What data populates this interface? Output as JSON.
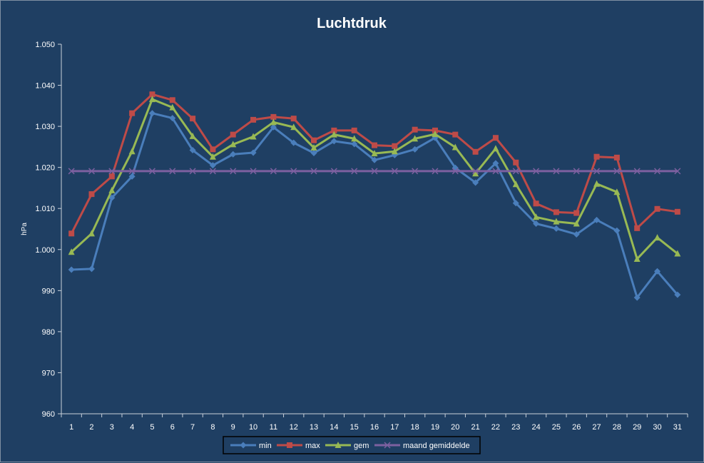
{
  "chart_data": {
    "type": "line",
    "title": "Luchtdruk",
    "ylabel": "hPa",
    "xlabel": "",
    "ylim": [
      960,
      1050
    ],
    "yticks": [
      960,
      970,
      980,
      990,
      1000,
      1010,
      1020,
      1030,
      1040,
      1050
    ],
    "ytick_labels": [
      "960",
      "970",
      "980",
      "990",
      "1.000",
      "1.010",
      "1.020",
      "1.030",
      "1.040",
      "1.050"
    ],
    "categories": [
      "1",
      "2",
      "3",
      "4",
      "5",
      "6",
      "7",
      "8",
      "9",
      "10",
      "11",
      "12",
      "13",
      "14",
      "15",
      "16",
      "17",
      "18",
      "19",
      "20",
      "21",
      "22",
      "23",
      "24",
      "25",
      "26",
      "27",
      "28",
      "29",
      "30",
      "31"
    ],
    "grid": false,
    "legend_position": "bottom",
    "series": [
      {
        "name": "min",
        "color": "#4a7ebb",
        "marker": "diamond",
        "values": [
          995.1,
          995.3,
          1012.6,
          1017.8,
          1033.2,
          1032.0,
          1024.2,
          1020.5,
          1023.2,
          1023.6,
          1029.8,
          1026.0,
          1023.5,
          1026.4,
          1025.7,
          1021.8,
          1023.0,
          1024.4,
          1027.2,
          1019.9,
          1016.3,
          1021.0,
          1011.3,
          1006.3,
          1005.1,
          1003.7,
          1007.2,
          1004.6,
          988.3,
          994.7,
          989.0
        ]
      },
      {
        "name": "max",
        "color": "#be4b48",
        "marker": "square",
        "values": [
          1003.9,
          1013.5,
          1017.8,
          1033.2,
          1037.8,
          1036.4,
          1031.9,
          1024.4,
          1028.0,
          1031.6,
          1032.3,
          1031.9,
          1026.6,
          1029.0,
          1029.0,
          1025.4,
          1025.2,
          1029.2,
          1029.0,
          1028.0,
          1023.8,
          1027.2,
          1021.2,
          1011.2,
          1009.1,
          1008.9,
          1022.6,
          1022.4,
          1005.2,
          1009.9,
          1009.2
        ]
      },
      {
        "name": "gem",
        "color": "#98b954",
        "marker": "triangle",
        "values": [
          999.4,
          1003.9,
          1014.4,
          1023.9,
          1036.6,
          1034.6,
          1027.6,
          1022.6,
          1025.6,
          1027.5,
          1031.0,
          1029.8,
          1024.8,
          1028.0,
          1027.0,
          1023.4,
          1023.9,
          1027.0,
          1028.1,
          1024.9,
          1018.5,
          1024.6,
          1015.9,
          1007.9,
          1006.8,
          1006.3,
          1016.0,
          1014.0,
          997.7,
          1002.9,
          999.0
        ]
      },
      {
        "name": "maand gemiddelde",
        "color": "#7d60a0",
        "marker": "x",
        "values": [
          1019.1,
          1019.1,
          1019.1,
          1019.1,
          1019.1,
          1019.1,
          1019.1,
          1019.1,
          1019.1,
          1019.1,
          1019.1,
          1019.1,
          1019.1,
          1019.1,
          1019.1,
          1019.1,
          1019.1,
          1019.1,
          1019.1,
          1019.1,
          1019.1,
          1019.1,
          1019.1,
          1019.1,
          1019.1,
          1019.1,
          1019.1,
          1019.1,
          1019.1,
          1019.1,
          1019.1
        ]
      }
    ]
  }
}
